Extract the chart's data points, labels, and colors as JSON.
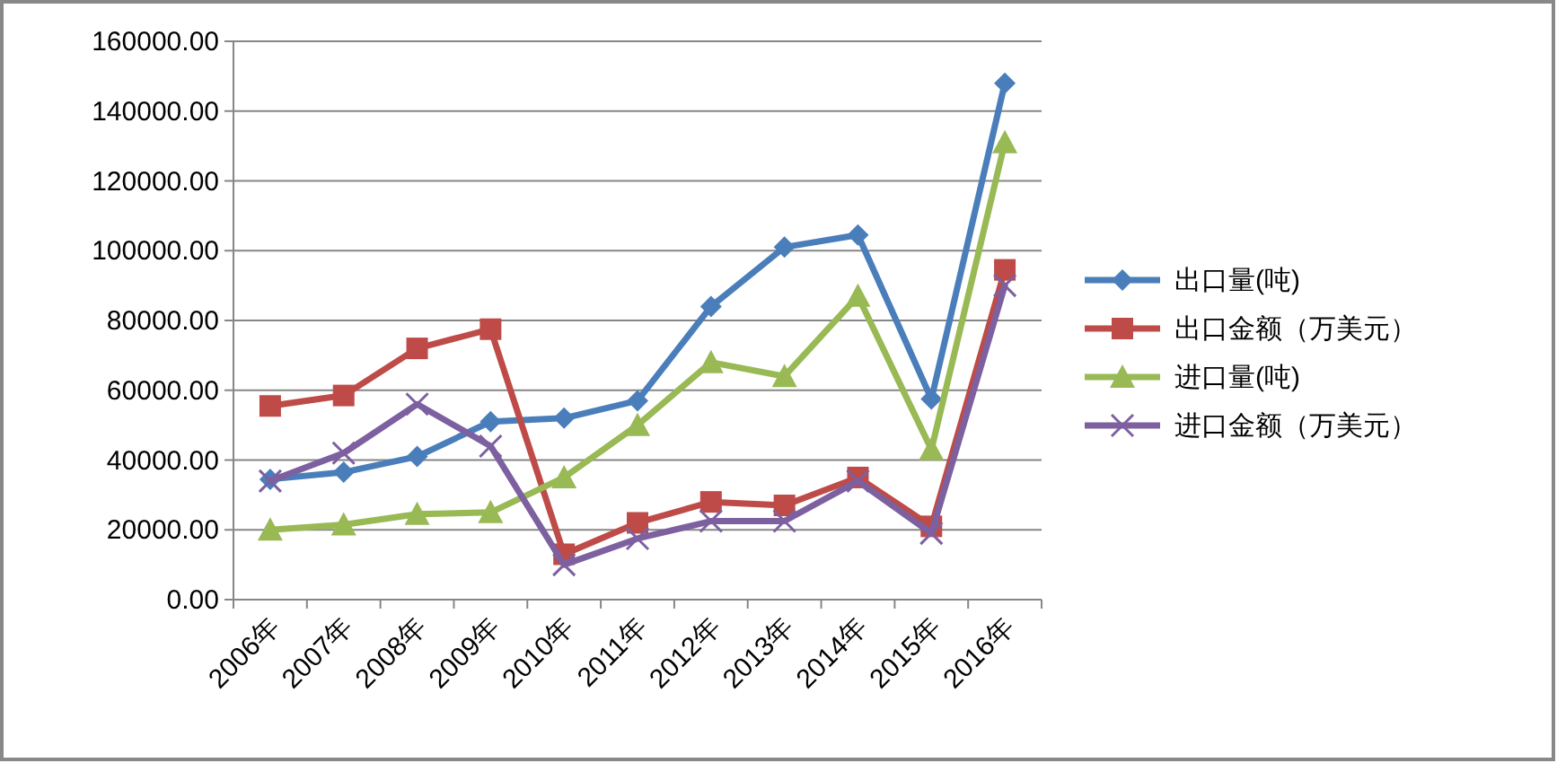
{
  "chart_data": {
    "type": "line",
    "categories": [
      "2006年",
      "2007年",
      "2008年",
      "2009年",
      "2010年",
      "2011年",
      "2012年",
      "2013年",
      "2014年",
      "2015年",
      "2016年"
    ],
    "ylim": [
      0,
      160000
    ],
    "yticks": [
      {
        "value": 0,
        "label": "0.00"
      },
      {
        "value": 20000,
        "label": "20000.00"
      },
      {
        "value": 40000,
        "label": "40000.00"
      },
      {
        "value": 60000,
        "label": "60000.00"
      },
      {
        "value": 80000,
        "label": "80000.00"
      },
      {
        "value": 100000,
        "label": "100000.00"
      },
      {
        "value": 120000,
        "label": "120000.00"
      },
      {
        "value": 140000,
        "label": "140000.00"
      },
      {
        "value": 160000,
        "label": "160000.00"
      }
    ],
    "grid": "y",
    "legend": "right",
    "series": [
      {
        "name": "出口量(吨)",
        "color": "#4a7ebb",
        "marker": "diamond",
        "values": [
          34500,
          36500,
          41000,
          51000,
          52000,
          57000,
          84000,
          101000,
          104500,
          57500,
          148000
        ]
      },
      {
        "name": "出口金额（万美元）",
        "color": "#be4b48",
        "marker": "square",
        "values": [
          55500,
          58500,
          72000,
          77500,
          13000,
          22000,
          28000,
          27000,
          35000,
          21000,
          94500
        ]
      },
      {
        "name": "进口量(吨)",
        "color": "#98b954",
        "marker": "triangle",
        "values": [
          20000,
          21500,
          24500,
          25000,
          35000,
          50000,
          68000,
          64000,
          87000,
          43000,
          131000
        ]
      },
      {
        "name": "进口金额（万美元）",
        "color": "#7d60a0",
        "marker": "cross",
        "values": [
          34000,
          42000,
          56000,
          44000,
          10000,
          17500,
          22500,
          22500,
          34000,
          19000,
          90000
        ]
      }
    ]
  }
}
